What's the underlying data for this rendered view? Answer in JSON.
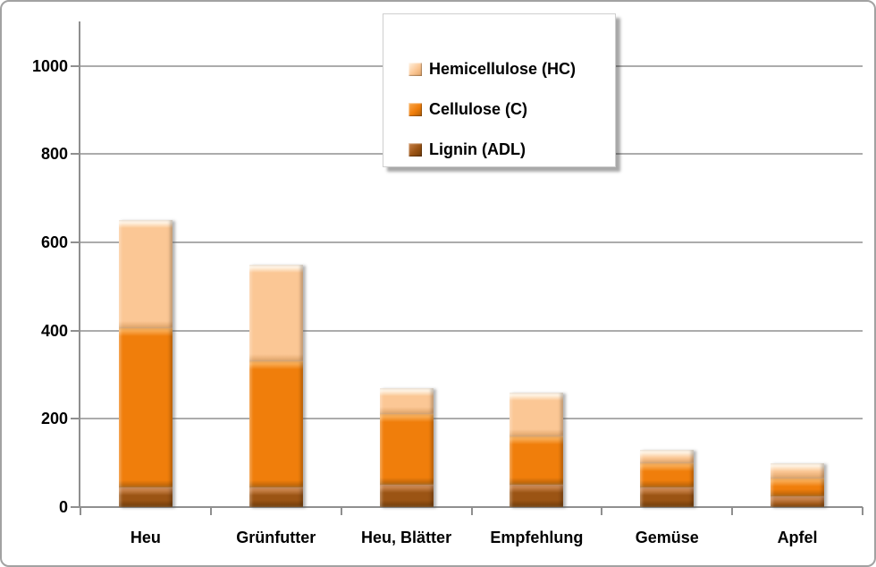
{
  "chart_data": {
    "type": "bar",
    "stacked": true,
    "title": "",
    "xlabel": "",
    "ylabel": "",
    "grid": true,
    "categories": [
      "Heu",
      "Grünfutter",
      "Heu, Blätter",
      "Empfehlung",
      "Gemüse",
      "Apfel"
    ],
    "series": [
      {
        "name": "Lignin (ADL)",
        "color": "#9B5414",
        "highlight": "#C8824A",
        "shade": "#6F3B08",
        "values": [
          45,
          45,
          50,
          50,
          45,
          25
        ]
      },
      {
        "name": "Cellulose (C)",
        "color": "#F07E0B",
        "highlight": "#F9A94F",
        "shade": "#B05F08",
        "values": [
          360,
          285,
          160,
          110,
          55,
          40
        ]
      },
      {
        "name": "Hemicellulose (HC)",
        "color": "#FBC795",
        "highlight": "#FFF3E3",
        "shade": "#DFA266",
        "values": [
          245,
          220,
          60,
          100,
          30,
          35
        ]
      }
    ],
    "legend": {
      "position": "top-right",
      "entries": [
        "Hemicellulose (HC)",
        "Cellulose (C)",
        "Lignin (ADL)"
      ]
    },
    "yticks": [
      0,
      200,
      400,
      600,
      800,
      1000
    ],
    "ylim": [
      0,
      1100
    ]
  }
}
